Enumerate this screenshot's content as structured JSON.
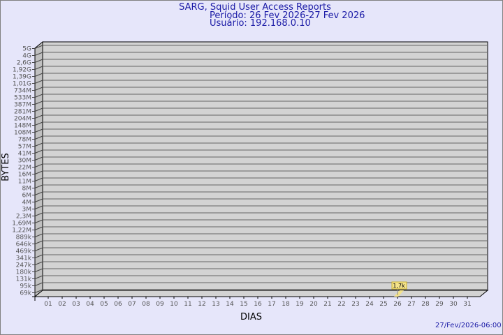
{
  "chart_data": {
    "type": "bar",
    "title": "SARG, Squid User Access Reports",
    "subtitle_period": "Período: 26 Fev 2026-27 Fev 2026",
    "subtitle_user": "Usuário: 192.168.0.10",
    "xlabel": "DIAS",
    "ylabel": "BYTES",
    "footer": "27/Fev/2026-06:00",
    "y_scale": "log",
    "grid": true,
    "y_ticks": [
      "5G",
      "4G",
      "2,6G",
      "1,92G",
      "1,39G",
      "1,01G",
      "734M",
      "533M",
      "387M",
      "281M",
      "204M",
      "148M",
      "108M",
      "78M",
      "57M",
      "41M",
      "30M",
      "22M",
      "16M",
      "11M",
      "8M",
      "6M",
      "4M",
      "3M",
      "2,3M",
      "1,69M",
      "1,22M",
      "889k",
      "646k",
      "469k",
      "341k",
      "247k",
      "180k",
      "131k",
      "95k",
      "69k"
    ],
    "categories": [
      "01",
      "02",
      "03",
      "04",
      "05",
      "06",
      "07",
      "08",
      "09",
      "10",
      "11",
      "12",
      "13",
      "14",
      "15",
      "16",
      "17",
      "18",
      "19",
      "20",
      "21",
      "22",
      "23",
      "24",
      "25",
      "26",
      "27",
      "28",
      "29",
      "30",
      "31"
    ],
    "values": [
      {
        "day": "26",
        "bytes": 1700,
        "label": "1,7k"
      }
    ],
    "colors": {
      "background": "#e6e6fa",
      "plot": "#d3d3d3",
      "bar": "#f5e38a",
      "text": "#1a1aa6",
      "axis_text": "#555555"
    }
  }
}
